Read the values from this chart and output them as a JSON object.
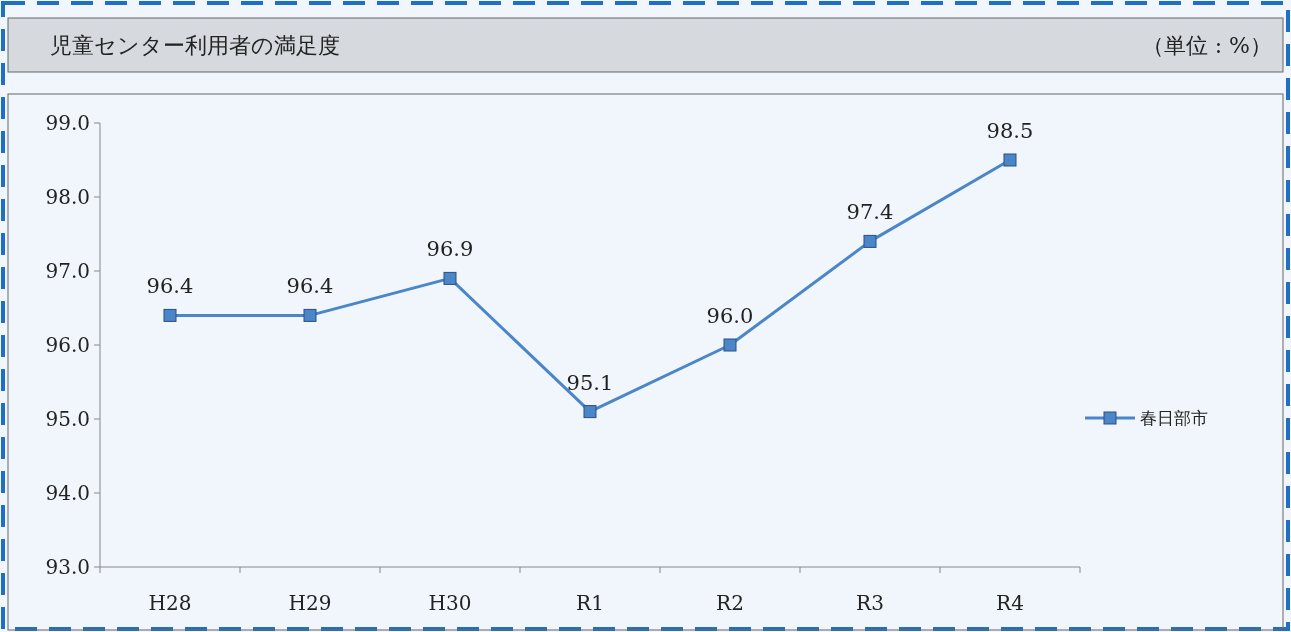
{
  "chart_data": {
    "type": "line",
    "title": "児童センター利用者の満足度",
    "annotations": [
      "（単位 : %）"
    ],
    "categories": [
      "H28",
      "H29",
      "H30",
      "R1",
      "R2",
      "R3",
      "R4"
    ],
    "series": [
      {
        "name": "春日部市",
        "color": "#4a86c8",
        "values": [
          96.4,
          96.4,
          96.9,
          95.1,
          96.0,
          97.4,
          98.5
        ],
        "value_labels": [
          "96.4",
          "96.4",
          "96.9",
          "95.1",
          "96.0",
          "97.4",
          "98.5"
        ]
      }
    ],
    "ylim": [
      93,
      99
    ],
    "yticks": [
      {
        "value": 93,
        "label": "93.0"
      },
      {
        "value": 94,
        "label": "94.0"
      },
      {
        "value": 95,
        "label": "95.0"
      },
      {
        "value": 96,
        "label": "96.0"
      },
      {
        "value": 97,
        "label": "97.0"
      },
      {
        "value": 98,
        "label": "98.0"
      },
      {
        "value": 99,
        "label": "99.0"
      }
    ],
    "marker": "square",
    "legend": "right",
    "grid": false
  }
}
